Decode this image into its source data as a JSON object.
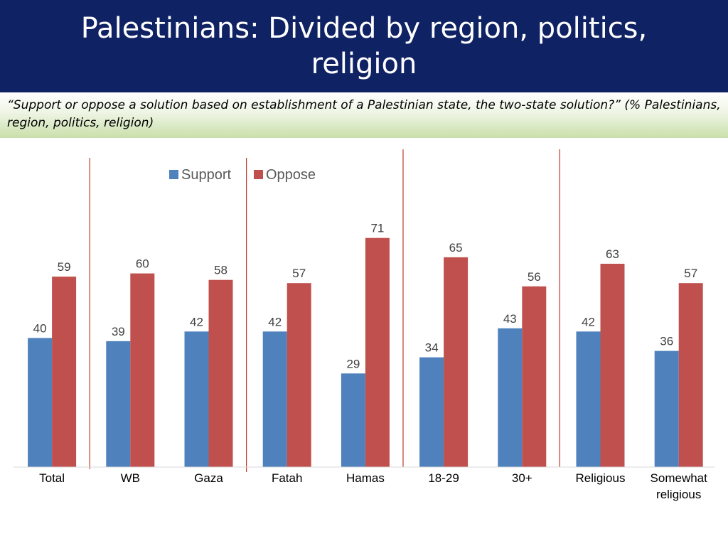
{
  "header": {
    "title": "Palestinians: Divided by region, politics, religion",
    "subtitle": "“Support or oppose a solution based on establishment of a Palestinian state, the two-state solution?” (% Palestinians, region, politics, religion)"
  },
  "colors": {
    "support": "#4f81bd",
    "oppose": "#c0504d",
    "separator": "#c0392b",
    "title_bg": "#0f2263"
  },
  "chart_data": {
    "type": "bar",
    "categories": [
      "Total",
      "WB",
      "Gaza",
      "Fatah",
      "Hamas",
      "18-29",
      "30+",
      "Religious",
      "Somewhat religious"
    ],
    "series": [
      {
        "name": "Support",
        "values": [
          40,
          39,
          42,
          42,
          29,
          34,
          43,
          42,
          36
        ]
      },
      {
        "name": "Oppose",
        "values": [
          59,
          60,
          58,
          57,
          71,
          65,
          56,
          63,
          57
        ]
      }
    ],
    "ylim": [
      0,
      80
    ],
    "legend": "top-left",
    "grid": false,
    "data_labels": true,
    "group_separators_after": [
      "Total",
      "Gaza",
      "Hamas",
      "30+"
    ]
  }
}
